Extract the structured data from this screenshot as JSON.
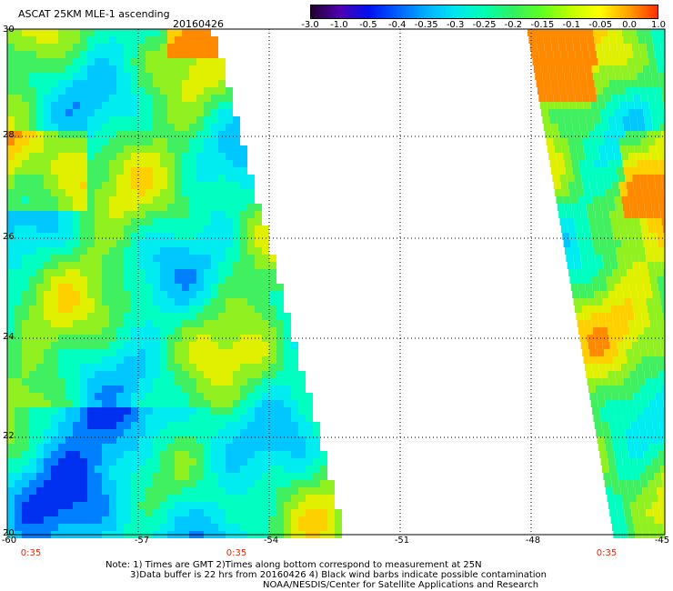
{
  "header": {
    "title": "ASCAT 25KM MLE-1 ascending",
    "date": "20160426"
  },
  "colorbar": {
    "labels": [
      "-3.0",
      "-1.0",
      "-0.5",
      "-0.4",
      "-0.35",
      "-0.3",
      "-0.25",
      "-0.2",
      "-0.15",
      "-0.1",
      "-0.05",
      "0.0",
      "1.0"
    ],
    "colors": [
      "#200030",
      "#5000b0",
      "#0010f0",
      "#0060ff",
      "#00b0ff",
      "#00e8f0",
      "#00ffb0",
      "#30f060",
      "#60ff20",
      "#c0ff00",
      "#ffff00",
      "#ffa000",
      "#ff3000"
    ]
  },
  "axes": {
    "lat_labels": [
      "20",
      "22",
      "24",
      "26",
      "28",
      "30"
    ],
    "lon_labels": [
      "-60",
      "-57",
      "-54",
      "-51",
      "-48",
      "-45"
    ],
    "lat_range": [
      20,
      30
    ],
    "lon_range": [
      -60,
      -45
    ]
  },
  "pass_times": [
    "0:35",
    "0:35",
    "0:35"
  ],
  "notes": {
    "line1": "Note: 1) Times are GMT 2)Times along bottom correspond to measurement at 25N",
    "line2": "3)Data buffer is 22 hrs from 20160426 4) Black wind barbs indicate possible contamination",
    "line3": "NOAA/NESDIS/Center for Satellite Applications and Research"
  }
}
